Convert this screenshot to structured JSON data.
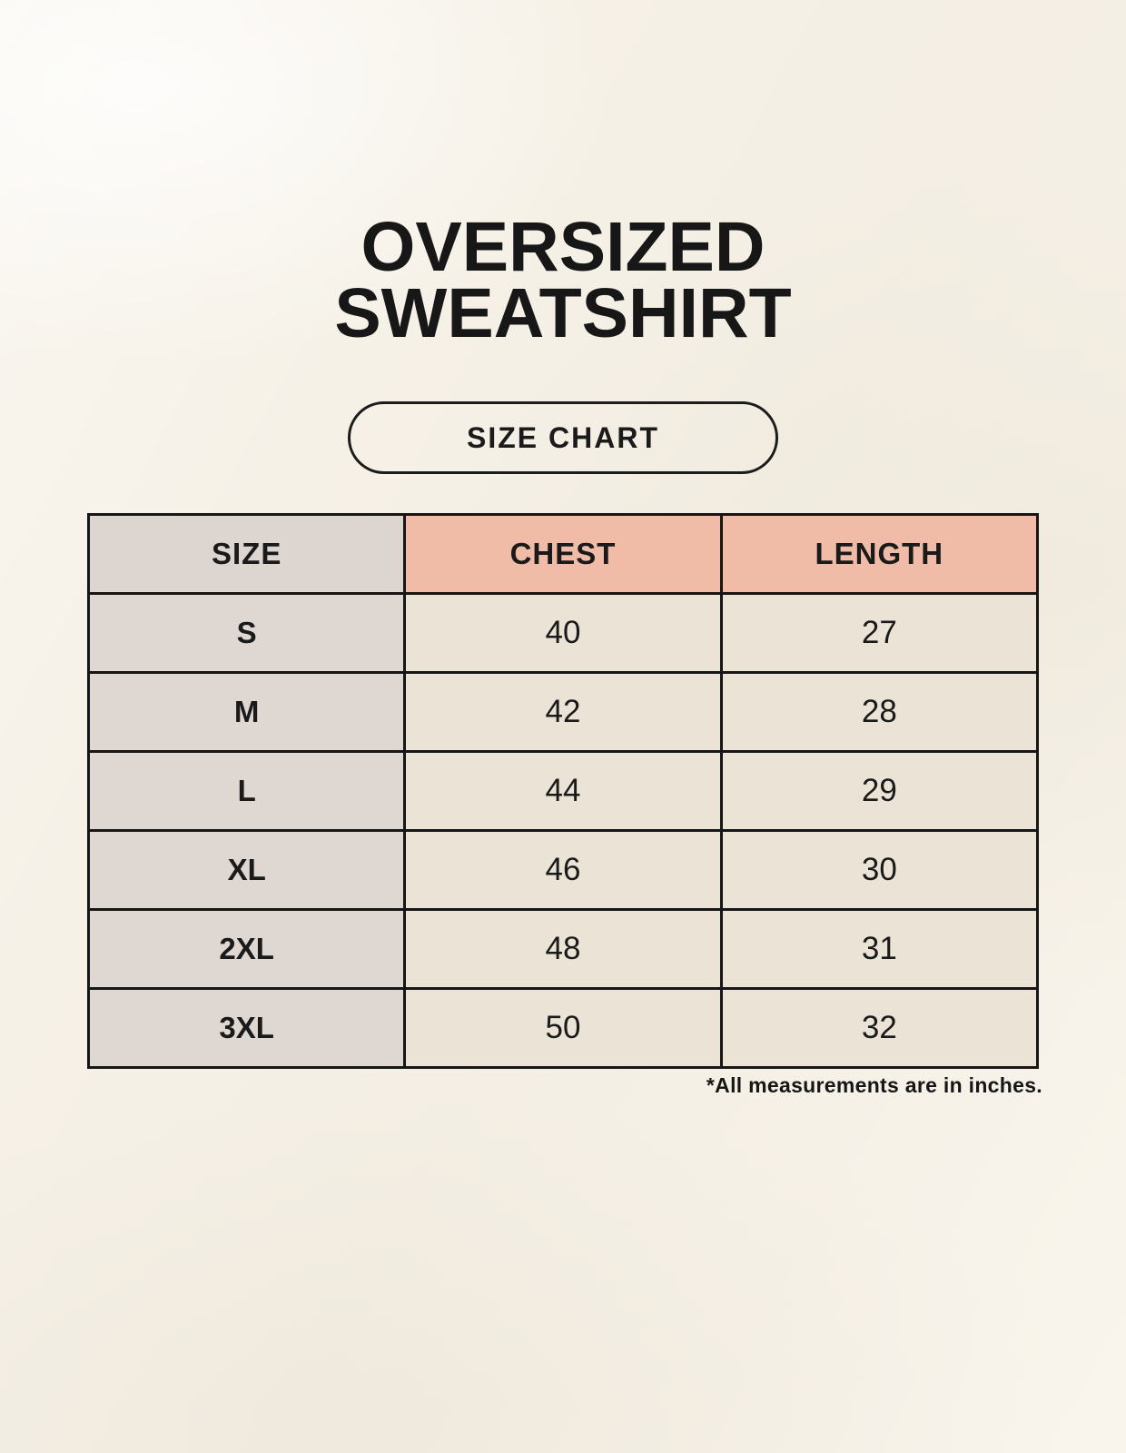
{
  "page": {
    "title_lines": [
      "OVERSIZED",
      "SWEATSHIRT"
    ],
    "size_chart_button": "SIZE CHART",
    "footnote": "*All measurements are in inches."
  },
  "chart_data": {
    "type": "table",
    "title": "OVERSIZED SWEATSHIRT",
    "subtitle": "SIZE CHART",
    "columns": [
      "SIZE",
      "CHEST",
      "LENGTH"
    ],
    "rows": [
      [
        "S",
        40,
        27
      ],
      [
        "M",
        42,
        28
      ],
      [
        "L",
        44,
        29
      ],
      [
        "XL",
        46,
        30
      ],
      [
        "2XL",
        48,
        31
      ],
      [
        "3XL",
        50,
        32
      ]
    ],
    "units": "inches"
  },
  "colors": {
    "background": "#F6F1E7",
    "header_size_bg": "#DDD5D0",
    "header_measurement_bg": "#F0BCA8",
    "size_column_bg": "#DFD7D2",
    "value_cell_bg": "#EAE3D6",
    "table_border": "#161616",
    "text": "#1A1A1A"
  }
}
